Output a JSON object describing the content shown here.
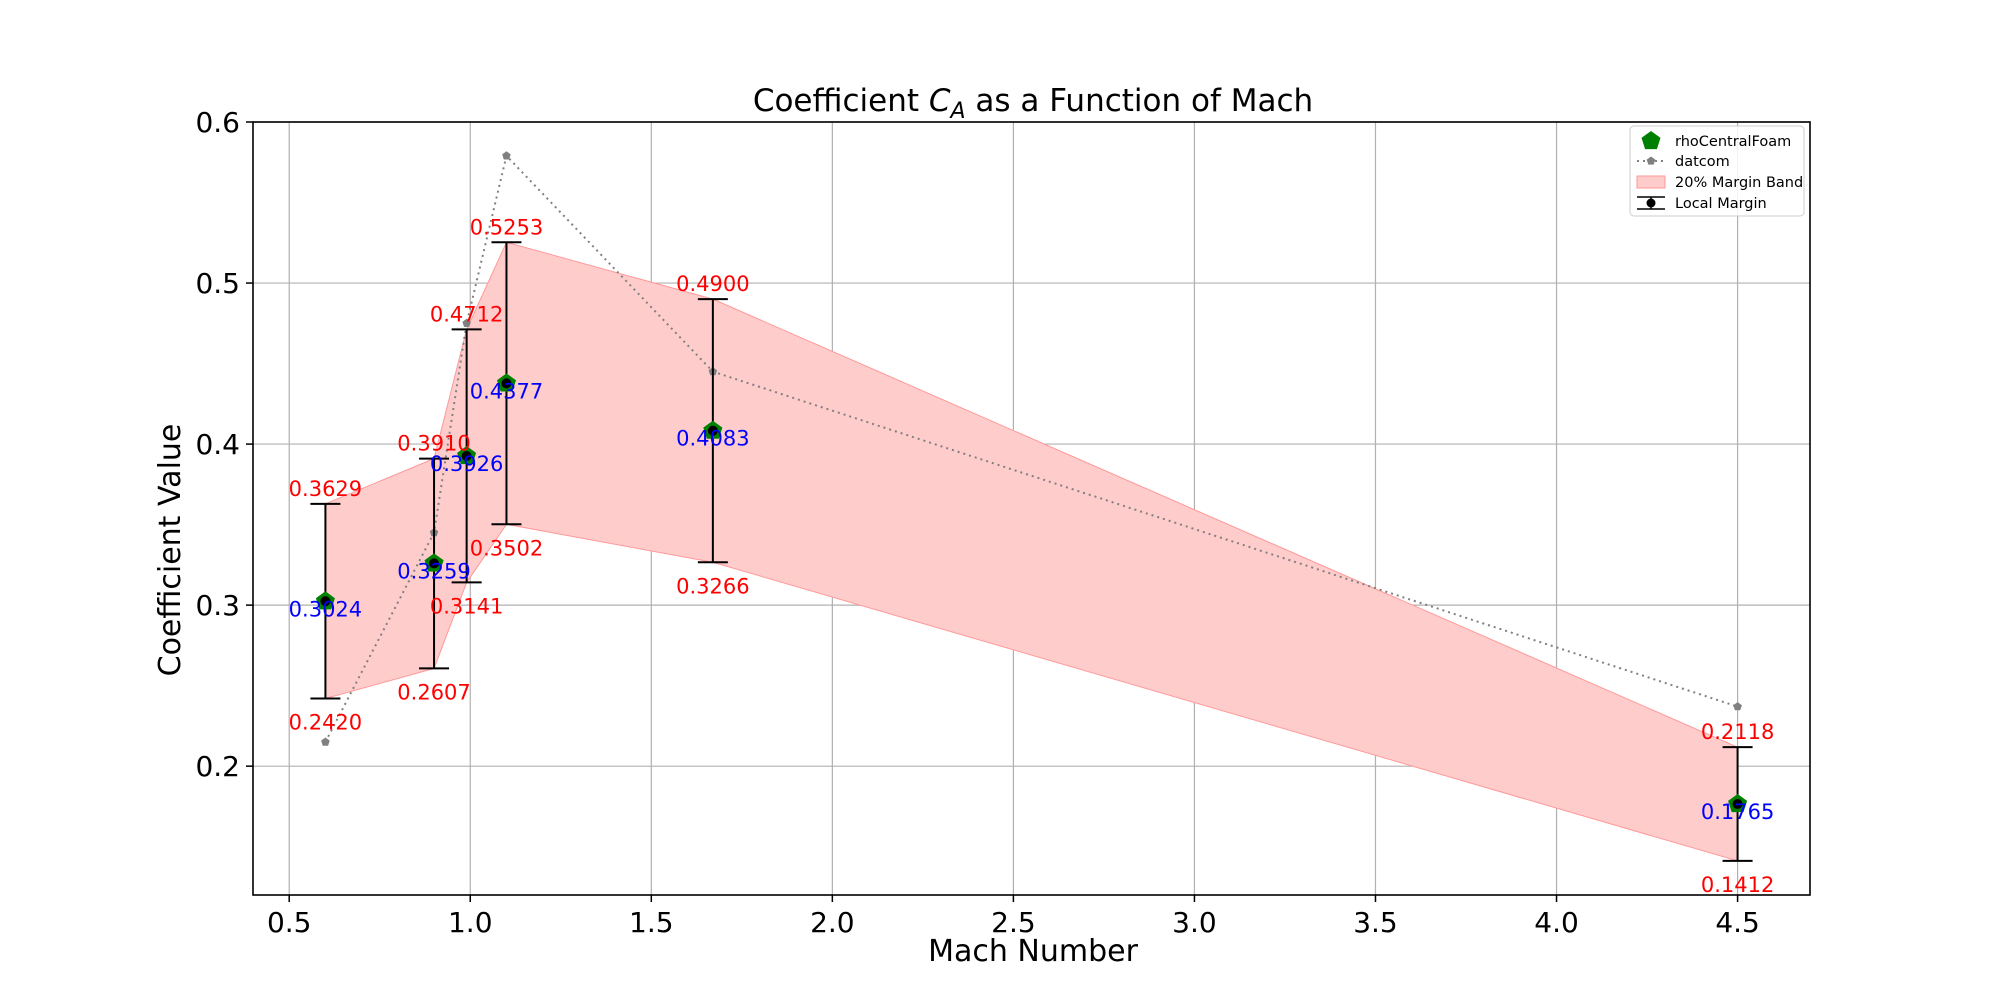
{
  "chart_data": {
    "type": "line",
    "title_prefix": "Coefficient ",
    "title_symbol": "C",
    "title_subscript": "A",
    "title_suffix": " as a Function of Mach",
    "xlabel": "Mach Number",
    "ylabel": "Coefficient Value",
    "xlim": [
      0.4,
      4.7
    ],
    "ylim": [
      0.12,
      0.6
    ],
    "xticks": [
      0.5,
      1.0,
      1.5,
      2.0,
      2.5,
      3.0,
      3.5,
      4.0,
      4.5
    ],
    "xtick_labels": [
      "0.5",
      "1.0",
      "1.5",
      "2.0",
      "2.5",
      "3.0",
      "3.5",
      "4.0",
      "4.5"
    ],
    "yticks": [
      0.2,
      0.3,
      0.4,
      0.5,
      0.6
    ],
    "ytick_labels": [
      "0.2",
      "0.3",
      "0.4",
      "0.5",
      "0.6"
    ],
    "grid": true,
    "legend_position": "top-right",
    "colors": {
      "rhoCentralFoam": "#008000",
      "datcom": "#808080",
      "band": "#ffcccc",
      "band_edge": "#ff9999",
      "errorbar": "#000000",
      "lower_upper_label": "#ff0000",
      "value_label": "#0000ff"
    },
    "series": [
      {
        "name": "rhoCentralFoam",
        "x": [
          0.6,
          0.9,
          0.99,
          1.1,
          1.67,
          4.5
        ],
        "y": [
          0.3024,
          0.3259,
          0.3926,
          0.4377,
          0.4083,
          0.1765
        ]
      },
      {
        "name": "datcom",
        "x": [
          0.6,
          0.9,
          0.99,
          1.1,
          1.67,
          4.5
        ],
        "y": [
          0.215,
          0.345,
          0.475,
          0.579,
          0.445,
          0.237
        ]
      },
      {
        "name": "20% Margin Band",
        "x": [
          0.6,
          0.9,
          0.99,
          1.1,
          1.67,
          4.5
        ],
        "lower": [
          0.242,
          0.2607,
          0.3141,
          0.3502,
          0.3266,
          0.1412
        ],
        "upper": [
          0.3629,
          0.391,
          0.4712,
          0.5253,
          0.49,
          0.2118
        ]
      },
      {
        "name": "Local Margin",
        "x": [
          0.6,
          0.9,
          0.99,
          1.1,
          1.67,
          4.5
        ],
        "y": [
          0.3024,
          0.3259,
          0.3926,
          0.4377,
          0.4083,
          0.1765
        ],
        "lower": [
          0.242,
          0.2607,
          0.3141,
          0.3502,
          0.3266,
          0.1412
        ],
        "upper": [
          0.3629,
          0.391,
          0.4712,
          0.5253,
          0.49,
          0.2118
        ]
      }
    ],
    "value_labels": [
      "0.3024",
      "0.3259",
      "0.3926",
      "0.4377",
      "0.4083",
      "0.1765"
    ],
    "lower_labels": [
      "0.2420",
      "0.2607",
      "0.3141",
      "0.3502",
      "0.3266",
      "0.1412"
    ],
    "upper_labels": [
      "0.3629",
      "0.3910",
      "0.4712",
      "0.5253",
      "0.4900",
      "0.2118"
    ],
    "legend": [
      {
        "label": "rhoCentralFoam",
        "marker": "pentagon-icon"
      },
      {
        "label": "datcom",
        "marker": "dotted-line-icon"
      },
      {
        "label": "20% Margin Band",
        "marker": "band-swatch-icon"
      },
      {
        "label": "Local Margin",
        "marker": "errorbar-icon"
      }
    ]
  }
}
